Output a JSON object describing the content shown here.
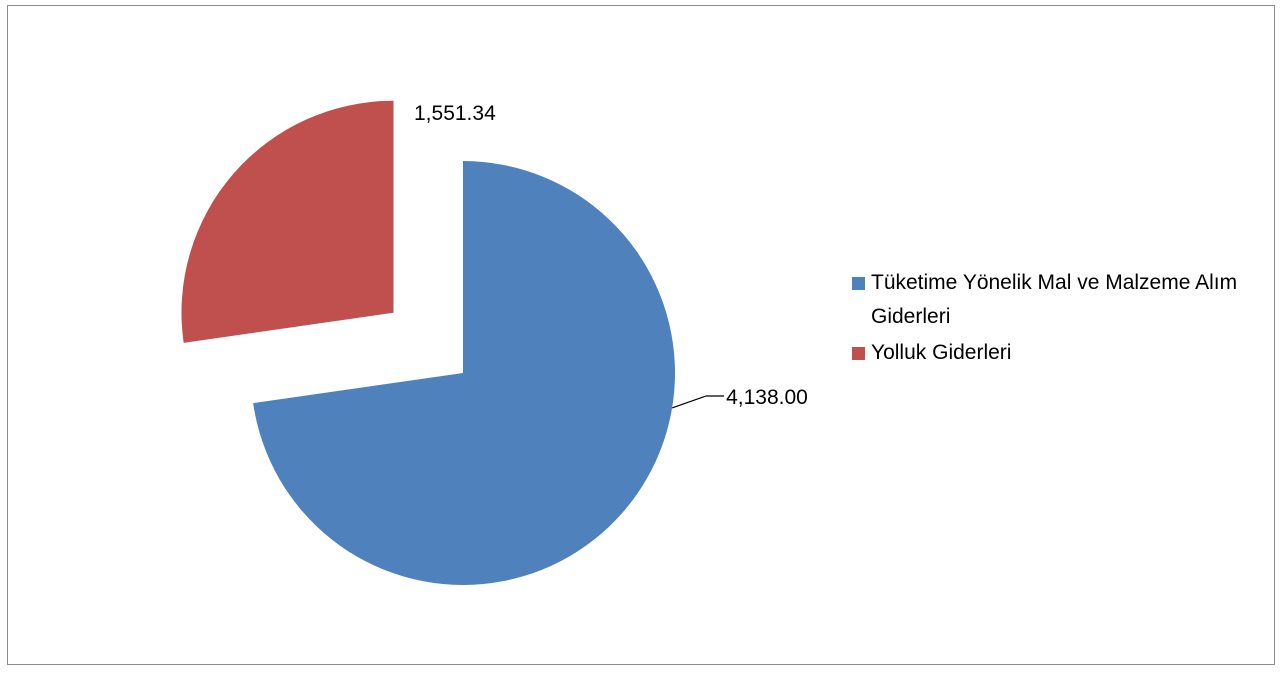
{
  "chart_data": {
    "type": "pie",
    "title": "",
    "series": [
      {
        "values": [
          4138.0,
          1551.34
        ]
      }
    ],
    "categories": [
      "Tüketime Yönelik Mal ve Malzeme Alım Giderleri",
      "Yolluk Giderleri"
    ],
    "values": [
      4138.0,
      1551.34
    ],
    "data_labels": [
      "4,138.00",
      "1,551.34"
    ],
    "colors": [
      "#4f81bd",
      "#c0504d"
    ],
    "legend_position": "right",
    "exploded_slice": "Yolluk Giderleri"
  }
}
